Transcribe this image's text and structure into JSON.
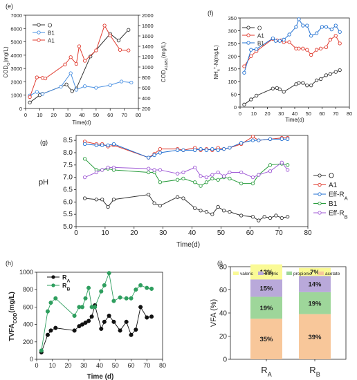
{
  "chart_data": [
    {
      "panel": "(e)",
      "type": "line",
      "xlabel": "Time(d)",
      "ylabel": "COD_O(mg/L)",
      "ylabel_right": "COD_A1&B1(mg/L)",
      "xlim": [
        0,
        80
      ],
      "ylim": [
        0,
        7000
      ],
      "ylim_right": [
        200,
        2000
      ],
      "xticks": [
        0,
        10,
        20,
        30,
        40,
        50,
        60,
        70,
        80
      ],
      "yticks": [
        0,
        1000,
        2000,
        3000,
        4000,
        5000,
        6000,
        7000
      ],
      "yticks_right": [
        200,
        400,
        600,
        800,
        1000,
        1200,
        1400,
        1600,
        1800,
        2000
      ],
      "legend_position": "top-left",
      "series": [
        {
          "name": "O",
          "color": "#333333",
          "axis": "left",
          "x": [
            3,
            10,
            12,
            29,
            33,
            36,
            46,
            60,
            66,
            73
          ],
          "y": [
            450,
            1000,
            1100,
            1800,
            1300,
            1500,
            3900,
            5600,
            5100,
            5900
          ]
        },
        {
          "name": "B1",
          "color": "#4a90e2",
          "axis": "right",
          "x": [
            3,
            8,
            12,
            25,
            32,
            36,
            42,
            50,
            60,
            68,
            75
          ],
          "y": [
            450,
            520,
            480,
            620,
            880,
            560,
            630,
            600,
            650,
            720,
            700
          ]
        },
        {
          "name": "A1",
          "color": "#e03a2e",
          "axis": "right",
          "x": [
            3,
            8,
            12,
            14,
            28,
            32,
            36,
            38,
            42,
            50,
            56,
            60,
            67,
            73
          ],
          "y": [
            420,
            800,
            790,
            780,
            1050,
            1190,
            1060,
            1400,
            1120,
            1320,
            1800,
            1610,
            1330,
            1320
          ]
        }
      ]
    },
    {
      "panel": "(f)",
      "type": "line",
      "xlabel": "Time(d)",
      "ylabel": "NH4+-N(mg/L)",
      "xlim": [
        0,
        80
      ],
      "ylim": [
        0,
        350
      ],
      "xticks": [
        0,
        10,
        20,
        30,
        40,
        50,
        60,
        70,
        80
      ],
      "yticks": [
        0,
        50,
        100,
        150,
        200,
        250,
        300,
        350
      ],
      "legend_position": "top-left",
      "series": [
        {
          "name": "O",
          "color": "#333333",
          "x": [
            3,
            8,
            12,
            24,
            27,
            29,
            32,
            41,
            43,
            46,
            49,
            52,
            56,
            59,
            63,
            66,
            70,
            73
          ],
          "y": [
            10,
            30,
            45,
            73,
            75,
            70,
            60,
            90,
            95,
            95,
            85,
            85,
            105,
            110,
            125,
            130,
            138,
            145
          ]
        },
        {
          "name": "A1",
          "color": "#e03a2e",
          "x": [
            3,
            8,
            12,
            24,
            27,
            30,
            32,
            36,
            41,
            43,
            46,
            49,
            52,
            56,
            59,
            63,
            66,
            70,
            73
          ],
          "y": [
            160,
            200,
            220,
            268,
            262,
            262,
            255,
            255,
            230,
            230,
            230,
            225,
            205,
            225,
            230,
            235,
            265,
            280,
            250
          ]
        },
        {
          "name": "B1",
          "color": "#1f6fd1",
          "x": [
            3,
            8,
            12,
            24,
            26,
            29,
            32,
            36,
            41,
            43,
            46,
            49,
            52,
            56,
            60,
            63,
            67,
            70,
            73
          ],
          "y": [
            135,
            225,
            228,
            270,
            260,
            260,
            265,
            285,
            315,
            345,
            320,
            320,
            280,
            290,
            315,
            315,
            305,
            320,
            295
          ]
        }
      ]
    },
    {
      "panel": "(g)",
      "type": "line",
      "xlabel": "Time(d)",
      "ylabel": "pH",
      "xlim": [
        0,
        80
      ],
      "ylim": [
        5.0,
        8.7
      ],
      "xticks": [
        0,
        10,
        20,
        30,
        40,
        50,
        60,
        70,
        80
      ],
      "yticks": [
        5.0,
        5.5,
        6.0,
        6.5,
        7.0,
        7.5,
        8.0,
        8.5
      ],
      "legend_position": "right",
      "series": [
        {
          "name": "O",
          "color": "#333333",
          "x": [
            3,
            7,
            9,
            11,
            13,
            25,
            27,
            29,
            35,
            37,
            41,
            43,
            45,
            47,
            49,
            51,
            53,
            57,
            61,
            63,
            65,
            67,
            69,
            71,
            73
          ],
          "y": [
            6.15,
            6.1,
            6.1,
            5.8,
            6.1,
            6.3,
            5.95,
            5.85,
            6.2,
            6.15,
            5.75,
            5.65,
            5.6,
            5.5,
            5.8,
            5.65,
            5.6,
            5.45,
            5.4,
            5.25,
            5.4,
            5.35,
            5.45,
            5.35,
            5.4
          ]
        },
        {
          "name": "A1",
          "color": "#e03a2e",
          "x": [
            3,
            7,
            9,
            11,
            13,
            25,
            27,
            29,
            35,
            37,
            41,
            43,
            45,
            47,
            49,
            51,
            53,
            57,
            61,
            63,
            67,
            71,
            73
          ],
          "y": [
            8.45,
            8.35,
            8.35,
            8.25,
            8.3,
            7.8,
            7.95,
            8.15,
            8.15,
            8.1,
            8.2,
            8.1,
            8.15,
            8.1,
            8.2,
            8.15,
            8.2,
            8.35,
            8.65,
            8.5,
            8.55,
            8.6,
            8.6
          ]
        },
        {
          "name": "Eff-RA",
          "color": "#1f6fd1",
          "x": [
            3,
            7,
            9,
            11,
            13,
            25,
            27,
            29,
            35,
            37,
            41,
            43,
            45,
            47,
            49,
            51,
            53,
            57,
            61,
            63,
            67,
            71,
            73
          ],
          "y": [
            8.35,
            8.3,
            8.3,
            8.3,
            8.35,
            7.8,
            7.9,
            8.0,
            8.1,
            8.1,
            8.1,
            8.15,
            8.1,
            8.15,
            8.1,
            8.15,
            8.2,
            8.4,
            8.5,
            8.5,
            8.55,
            8.55,
            8.55
          ]
        },
        {
          "name": "B1",
          "color": "#2a9d3e",
          "x": [
            3,
            7,
            9,
            11,
            13,
            25,
            27,
            29,
            35,
            37,
            41,
            43,
            45,
            47,
            49,
            51,
            53,
            57,
            61,
            63,
            67,
            71,
            73
          ],
          "y": [
            7.75,
            7.3,
            7.3,
            7.35,
            7.3,
            7.2,
            7.2,
            6.8,
            6.9,
            6.95,
            6.8,
            6.65,
            6.8,
            6.95,
            6.9,
            7.0,
            6.95,
            6.75,
            6.75,
            7.1,
            7.5,
            7.55,
            7.5
          ]
        },
        {
          "name": "Eff-RB",
          "color": "#a05bd6",
          "x": [
            3,
            7,
            9,
            11,
            13,
            25,
            27,
            29,
            35,
            37,
            41,
            43,
            45,
            47,
            49,
            51,
            53,
            57,
            61,
            63,
            67,
            71,
            73
          ],
          "y": [
            7.0,
            7.2,
            7.3,
            7.4,
            7.4,
            7.35,
            7.3,
            7.3,
            7.15,
            7.2,
            7.4,
            7.05,
            7.0,
            7.1,
            7.2,
            7.05,
            7.2,
            7.2,
            7.0,
            7.1,
            7.25,
            7.6,
            7.3
          ]
        }
      ]
    },
    {
      "panel": "(h)",
      "type": "line",
      "xlabel": "Time (d)",
      "ylabel": "TVFA_COD(mg/L)",
      "xlim": [
        0,
        80
      ],
      "ylim": [
        0,
        1000
      ],
      "xticks": [
        0,
        10,
        20,
        30,
        40,
        50,
        60,
        70,
        80
      ],
      "yticks": [
        0,
        200,
        400,
        600,
        800,
        1000
      ],
      "legend_position": "top-left",
      "series": [
        {
          "name": "RA",
          "color": "#111111",
          "x": [
            3,
            7,
            9,
            12,
            24,
            27,
            29,
            31,
            33,
            35,
            37,
            41,
            43,
            46,
            49,
            53,
            57,
            60,
            63,
            66,
            70,
            73
          ],
          "y": [
            80,
            280,
            330,
            360,
            330,
            380,
            400,
            420,
            440,
            490,
            620,
            350,
            430,
            500,
            430,
            330,
            430,
            280,
            340,
            600,
            480,
            490
          ]
        },
        {
          "name": "RB",
          "color": "#2e9e5e",
          "x": [
            3,
            7,
            9,
            12,
            24,
            27,
            29,
            31,
            33,
            35,
            37,
            41,
            43,
            46,
            49,
            53,
            57,
            60,
            63,
            66,
            70,
            73
          ],
          "y": [
            100,
            550,
            650,
            700,
            500,
            600,
            600,
            700,
            820,
            600,
            600,
            780,
            850,
            990,
            670,
            710,
            700,
            700,
            800,
            850,
            820,
            810
          ]
        }
      ]
    },
    {
      "panel": "(i)",
      "type": "bar",
      "ylabel": "VFA (%)",
      "ylim": [
        0,
        80
      ],
      "yticks": [
        0,
        20,
        40,
        60,
        80
      ],
      "categories": [
        "RA",
        "RB"
      ],
      "stacked": true,
      "legend_position": "top",
      "series": [
        {
          "name": "acetate",
          "color": "#f8c79a",
          "values": [
            35,
            39
          ],
          "labels": [
            "35%",
            "39%"
          ]
        },
        {
          "name": "propionic",
          "color": "#9ed69a",
          "values": [
            19,
            19
          ],
          "labels": [
            "19%",
            "19%"
          ]
        },
        {
          "name": "butyric",
          "color": "#b9a9da",
          "values": [
            15,
            14
          ],
          "labels": [
            "15%",
            "14%"
          ]
        },
        {
          "name": "valeric",
          "color": "#fafa96",
          "values": [
            13,
            7
          ],
          "labels": [
            "13%",
            "7%"
          ]
        }
      ]
    }
  ]
}
